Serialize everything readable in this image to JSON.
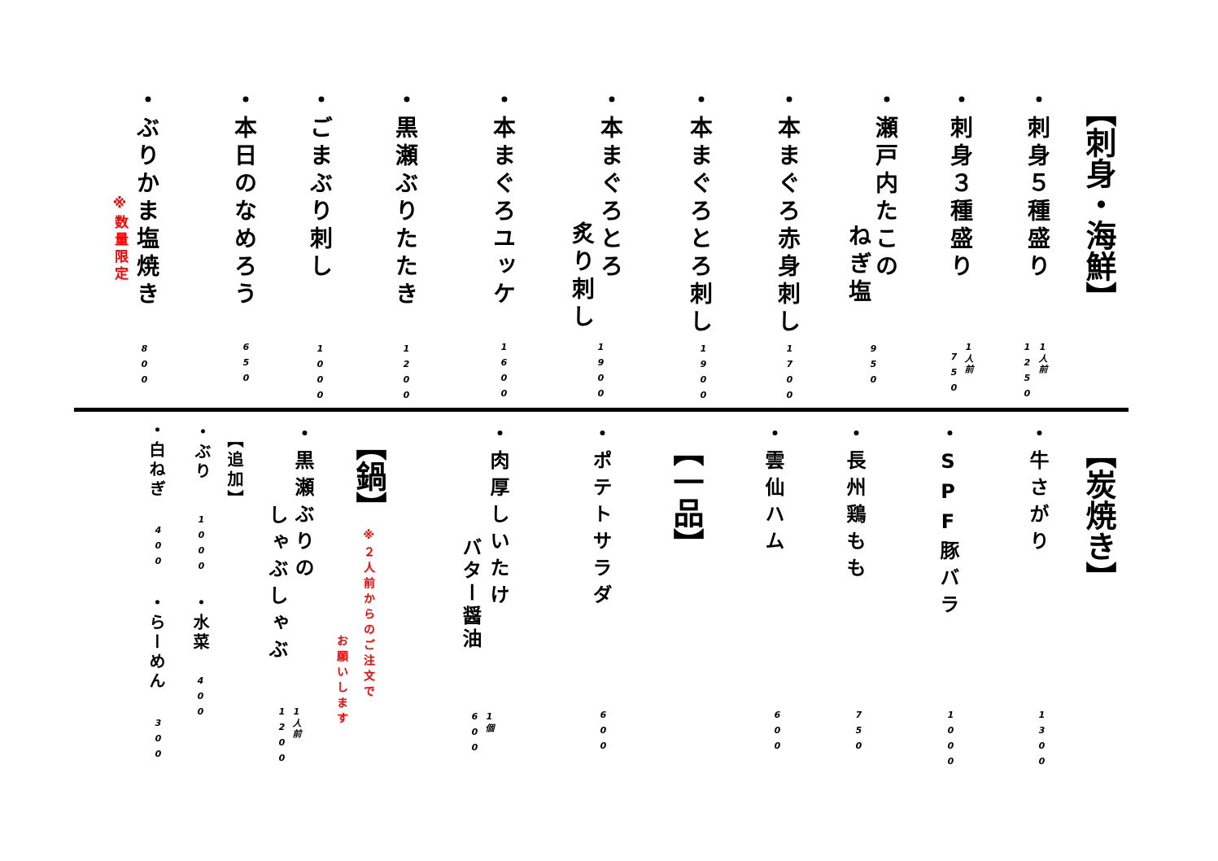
{
  "colors": {
    "text": "#000000",
    "note": "#ff0000"
  },
  "sashimi": {
    "heading": "【刺身・海鮮】",
    "items": [
      {
        "name": "・刺身５種盛り",
        "price": "1250",
        "unit": "1人前"
      },
      {
        "name": "・刺身３種盛り",
        "price": "750",
        "unit": "1人前"
      },
      {
        "name": "・瀬戸内たこの",
        "name2": "ねぎ塩",
        "price": "950"
      },
      {
        "name": "・本まぐろ赤身刺し",
        "price": "1700"
      },
      {
        "name": "・本まぐろとろ刺し",
        "price": "1900"
      },
      {
        "name": "・本まぐろとろ",
        "name2": "炙り刺し",
        "price": "1900"
      },
      {
        "name": "・本まぐろユッケ",
        "price": "1600"
      },
      {
        "name": "・黒瀬ぶりたたき",
        "price": "1200"
      },
      {
        "name": "・ごまぶり刺し",
        "price": "1000"
      },
      {
        "name": "・本日のなめろう",
        "price": "650"
      },
      {
        "name": "・ぶりかま塩焼き",
        "note": "※数量限定",
        "price": "800"
      }
    ]
  },
  "sumiyaki": {
    "heading": "【炭焼き】",
    "items": [
      {
        "name": "・牛さがり",
        "price": "1300"
      },
      {
        "name": "・SPF豚バラ",
        "price": "1000"
      },
      {
        "name": "・長州鶏もも",
        "price": "750"
      },
      {
        "name": "・雲仙ハム",
        "price": "600"
      }
    ]
  },
  "ippin": {
    "heading": "【一品】",
    "items": [
      {
        "name": "・ポテトサラダ",
        "price": "600"
      },
      {
        "name": "・肉厚しいたけ",
        "name2": "バター醤油",
        "price": "600",
        "unit": "1個"
      }
    ]
  },
  "nabe": {
    "heading": "【鍋】",
    "note1": "※２人前からのご注文で",
    "note2": "お願いします",
    "items": [
      {
        "name": "・黒瀬ぶりの",
        "name2": "しゃぶしゃぶ",
        "price": "1200",
        "unit": "1人前"
      }
    ]
  },
  "tsuika": {
    "heading": "【追加】",
    "items": [
      {
        "name": "・ぶり",
        "price": "1000"
      },
      {
        "name": "・水菜",
        "price": "400"
      },
      {
        "name": "・白ねぎ",
        "price": "400"
      },
      {
        "name": "・らーめん",
        "price": "300"
      }
    ]
  }
}
